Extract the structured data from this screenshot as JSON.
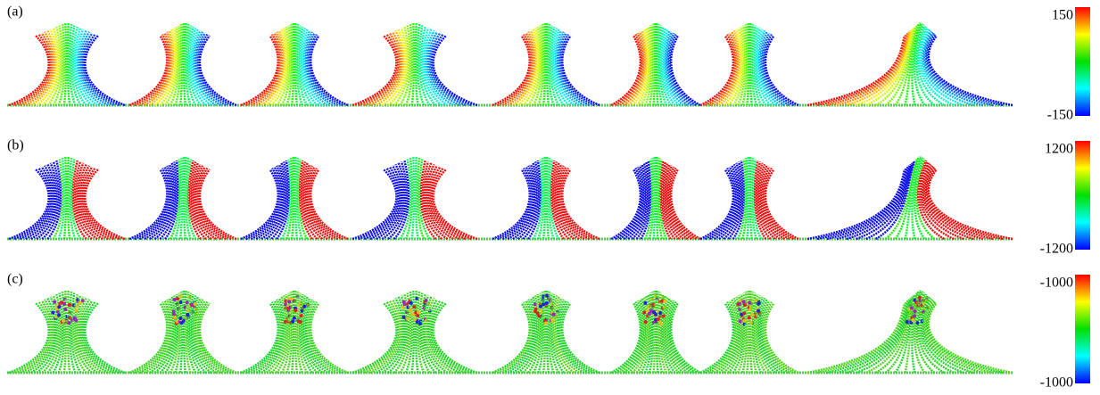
{
  "panels": [
    {
      "label": "(a)",
      "colorbar": {
        "max_label": "150",
        "min_label": "-150"
      }
    },
    {
      "label": "(b)",
      "colorbar": {
        "max_label": "1200",
        "min_label": "-1200"
      }
    },
    {
      "label": "(c)",
      "colorbar": {
        "max_label": "-1000",
        "min_label": "-1000"
      }
    }
  ]
}
